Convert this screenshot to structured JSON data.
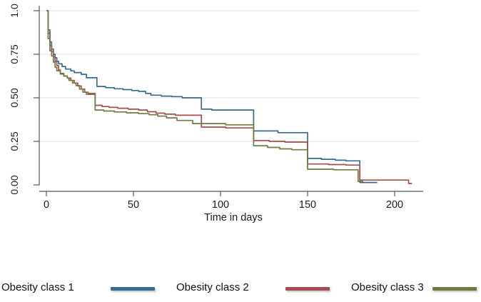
{
  "chart_data": {
    "type": "line",
    "subtype": "kaplan-meier-step-survival",
    "title": "",
    "xlabel": "Time in days",
    "ylabel": "",
    "xlim": [
      0,
      216
    ],
    "ylim": [
      0.0,
      1.0
    ],
    "x_ticks": [
      0,
      50,
      100,
      150,
      200
    ],
    "y_ticks": [
      0.0,
      0.25,
      0.5,
      0.75,
      1.0
    ],
    "y_tick_labels": [
      "0.00",
      "0.25",
      "0.50",
      "0.75",
      "1.0"
    ],
    "grid": "horizontal-at-y-ticks",
    "gridline_values": [
      0.25,
      0.5,
      0.75,
      1.0
    ],
    "legend_position": "bottom",
    "axis_color": "#565656",
    "grid_color": "#edeff1",
    "series": [
      {
        "name": "Obesity class 1",
        "color": "#376b8f",
        "end_day": 190,
        "steps": [
          [
            0,
            1.0
          ],
          [
            1,
            0.89
          ],
          [
            2,
            0.82
          ],
          [
            3,
            0.78
          ],
          [
            4,
            0.75
          ],
          [
            5,
            0.73
          ],
          [
            6,
            0.71
          ],
          [
            7,
            0.695
          ],
          [
            9,
            0.68
          ],
          [
            11,
            0.665
          ],
          [
            14,
            0.655
          ],
          [
            16,
            0.645
          ],
          [
            20,
            0.635
          ],
          [
            23,
            0.615
          ],
          [
            29,
            0.565
          ],
          [
            34,
            0.558
          ],
          [
            39,
            0.552
          ],
          [
            44,
            0.547
          ],
          [
            49,
            0.542
          ],
          [
            53,
            0.537
          ],
          [
            57,
            0.525
          ],
          [
            60,
            0.515
          ],
          [
            66,
            0.51
          ],
          [
            72,
            0.507
          ],
          [
            78,
            0.5
          ],
          [
            89,
            0.435
          ],
          [
            95,
            0.43
          ],
          [
            119,
            0.31
          ],
          [
            133,
            0.3
          ],
          [
            150,
            0.152
          ],
          [
            158,
            0.147
          ],
          [
            166,
            0.142
          ],
          [
            172,
            0.138
          ],
          [
            180,
            0.014
          ]
        ]
      },
      {
        "name": "Obesity class 2",
        "color": "#a64d4e",
        "end_day": 210,
        "steps": [
          [
            0,
            1.0
          ],
          [
            1,
            0.87
          ],
          [
            2,
            0.8
          ],
          [
            3,
            0.765
          ],
          [
            4,
            0.735
          ],
          [
            5,
            0.71
          ],
          [
            6,
            0.685
          ],
          [
            7,
            0.66
          ],
          [
            8,
            0.64
          ],
          [
            10,
            0.625
          ],
          [
            12,
            0.613
          ],
          [
            14,
            0.6
          ],
          [
            16,
            0.585
          ],
          [
            18,
            0.568
          ],
          [
            20,
            0.55
          ],
          [
            22,
            0.532
          ],
          [
            24,
            0.525
          ],
          [
            28,
            0.457
          ],
          [
            32,
            0.45
          ],
          [
            36,
            0.445
          ],
          [
            41,
            0.44
          ],
          [
            47,
            0.435
          ],
          [
            53,
            0.43
          ],
          [
            58,
            0.42
          ],
          [
            63,
            0.412
          ],
          [
            68,
            0.406
          ],
          [
            74,
            0.4
          ],
          [
            89,
            0.332
          ],
          [
            103,
            0.327
          ],
          [
            119,
            0.255
          ],
          [
            128,
            0.25
          ],
          [
            137,
            0.246
          ],
          [
            150,
            0.12
          ],
          [
            162,
            0.117
          ],
          [
            172,
            0.114
          ],
          [
            180,
            0.028
          ],
          [
            208,
            0.008
          ]
        ]
      },
      {
        "name": "Obesity class 3",
        "color": "#6f7c3f",
        "end_day": 182,
        "steps": [
          [
            0,
            1.0
          ],
          [
            1,
            0.84
          ],
          [
            2,
            0.77
          ],
          [
            3,
            0.74
          ],
          [
            4,
            0.705
          ],
          [
            5,
            0.675
          ],
          [
            6,
            0.655
          ],
          [
            8,
            0.636
          ],
          [
            10,
            0.625
          ],
          [
            12,
            0.614
          ],
          [
            13,
            0.6
          ],
          [
            15,
            0.585
          ],
          [
            17,
            0.57
          ],
          [
            19,
            0.55
          ],
          [
            21,
            0.532
          ],
          [
            23,
            0.52
          ],
          [
            28,
            0.43
          ],
          [
            33,
            0.424
          ],
          [
            39,
            0.419
          ],
          [
            46,
            0.414
          ],
          [
            53,
            0.409
          ],
          [
            59,
            0.403
          ],
          [
            64,
            0.395
          ],
          [
            69,
            0.385
          ],
          [
            75,
            0.37
          ],
          [
            84,
            0.352
          ],
          [
            103,
            0.345
          ],
          [
            119,
            0.225
          ],
          [
            127,
            0.215
          ],
          [
            134,
            0.207
          ],
          [
            141,
            0.202
          ],
          [
            150,
            0.09
          ],
          [
            165,
            0.087
          ],
          [
            179,
            0.02
          ]
        ]
      }
    ]
  },
  "legend": {
    "items": [
      {
        "label": "Obesity class 1",
        "color": "#376b8f"
      },
      {
        "label": "Obesity class 2",
        "color": "#a64d4e"
      },
      {
        "label": "Obesity class 3",
        "color": "#6f7c3f"
      }
    ]
  }
}
